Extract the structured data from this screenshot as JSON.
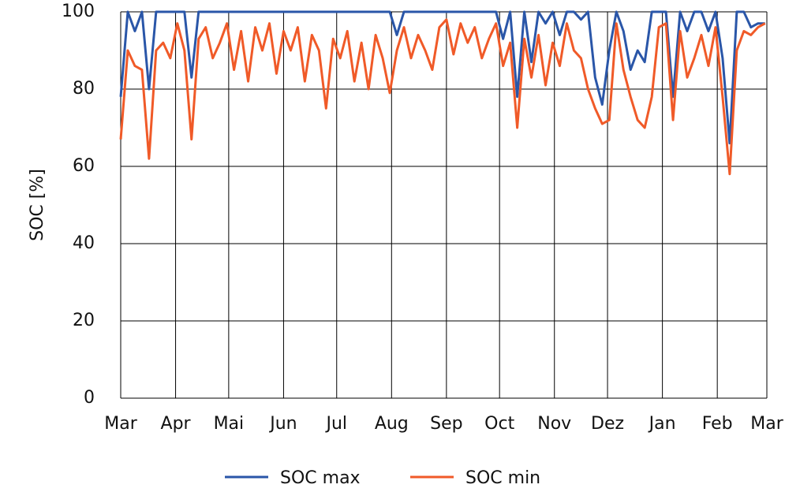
{
  "chart_data": {
    "type": "line",
    "y_label": "SOC [%]",
    "x": [
      0,
      4,
      8,
      12,
      16,
      20,
      24,
      28,
      32,
      36,
      40,
      44,
      48,
      52,
      56,
      60,
      64,
      68,
      72,
      76,
      80,
      84,
      88,
      92,
      96,
      100,
      104,
      108,
      112,
      116,
      120,
      124,
      128,
      132,
      136,
      140,
      144,
      148,
      152,
      156,
      160,
      164,
      168,
      172,
      176,
      180,
      184,
      188,
      192,
      196,
      200,
      204,
      208,
      212,
      216,
      220,
      224,
      228,
      232,
      236,
      240,
      244,
      248,
      252,
      256,
      260,
      264,
      268,
      272,
      276,
      280,
      284,
      288,
      292,
      296,
      300,
      304,
      308,
      312,
      316,
      320,
      324,
      328,
      332,
      336,
      340,
      344,
      348,
      352,
      356,
      360,
      364
    ],
    "series": [
      {
        "name": "SOC max",
        "color": "#2a56a8",
        "values": [
          78,
          100,
          95,
          100,
          80,
          100,
          100,
          100,
          100,
          100,
          83,
          100,
          100,
          100,
          100,
          100,
          100,
          100,
          100,
          100,
          100,
          100,
          100,
          100,
          100,
          100,
          100,
          100,
          100,
          100,
          100,
          100,
          100,
          100,
          100,
          100,
          100,
          100,
          100,
          94,
          100,
          100,
          100,
          100,
          100,
          100,
          100,
          100,
          100,
          100,
          100,
          100,
          100,
          100,
          93,
          100,
          78,
          100,
          87,
          100,
          97,
          100,
          94,
          100,
          100,
          98,
          100,
          83,
          76,
          90,
          100,
          95,
          85,
          90,
          87,
          100,
          100,
          100,
          78,
          100,
          95,
          100,
          100,
          95,
          100,
          88,
          66,
          100,
          100,
          96,
          97,
          97
        ]
      },
      {
        "name": "SOC min",
        "color": "#f05a28",
        "values": [
          67,
          90,
          86,
          85,
          62,
          90,
          92,
          88,
          97,
          90,
          67,
          93,
          96,
          88,
          92,
          97,
          85,
          95,
          82,
          96,
          90,
          97,
          84,
          95,
          90,
          96,
          82,
          94,
          90,
          75,
          93,
          88,
          95,
          82,
          92,
          80,
          94,
          88,
          79,
          90,
          96,
          88,
          94,
          90,
          85,
          96,
          98,
          89,
          97,
          92,
          96,
          88,
          93,
          97,
          86,
          92,
          70,
          93,
          83,
          94,
          81,
          92,
          86,
          97,
          90,
          88,
          80,
          75,
          71,
          72,
          97,
          85,
          78,
          72,
          70,
          78,
          96,
          97,
          72,
          95,
          83,
          88,
          94,
          86,
          96,
          78,
          58,
          90,
          95,
          94,
          96,
          97
        ]
      }
    ],
    "xlim": [
      0,
      365
    ],
    "xticks": [
      {
        "value": 0,
        "label": "Mar"
      },
      {
        "value": 31,
        "label": "Apr"
      },
      {
        "value": 61,
        "label": "Mai"
      },
      {
        "value": 92,
        "label": "Jun"
      },
      {
        "value": 122,
        "label": "Jul"
      },
      {
        "value": 153,
        "label": "Aug"
      },
      {
        "value": 184,
        "label": "Sep"
      },
      {
        "value": 214,
        "label": "Oct"
      },
      {
        "value": 245,
        "label": "Nov"
      },
      {
        "value": 275,
        "label": "Dez"
      },
      {
        "value": 306,
        "label": "Jan"
      },
      {
        "value": 337,
        "label": "Feb"
      },
      {
        "value": 365,
        "label": "Mar"
      }
    ],
    "ylim": [
      0,
      100
    ],
    "yticks": [
      0,
      20,
      40,
      60,
      80,
      100
    ],
    "grid": true,
    "legend": "bottom"
  }
}
